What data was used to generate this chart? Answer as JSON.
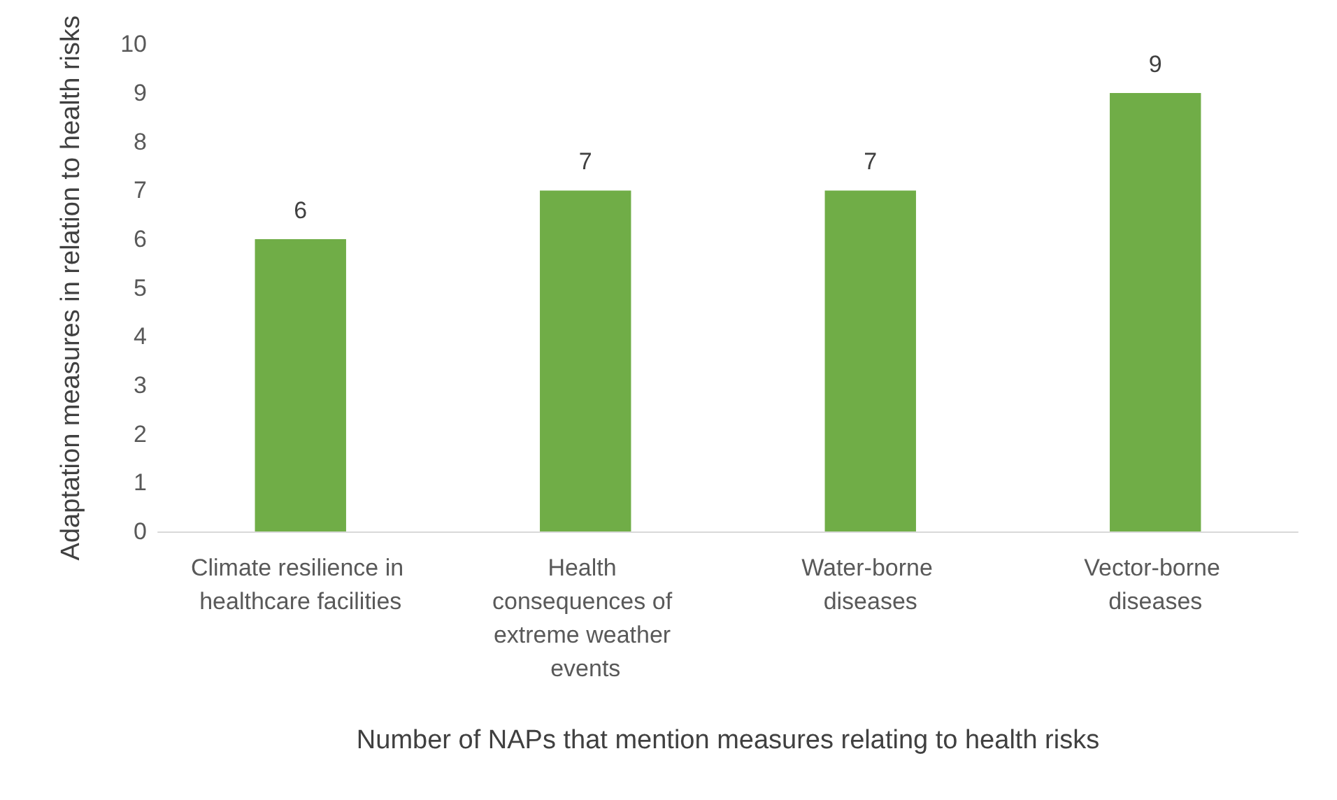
{
  "chart_data": {
    "type": "bar",
    "xlabel": "Number of NAPs that mention measures relating to health risks",
    "ylabel": "Adaptation measures in relation to health risks",
    "categories": [
      "Climate resilience in healthcare facilities",
      "Health consequences of extreme weather events",
      "Water-borne diseases",
      "Vector-borne diseases"
    ],
    "values": [
      6,
      7,
      7,
      9
    ],
    "color": "#70ad47",
    "ylim": [
      0,
      10
    ],
    "yticks": [
      0,
      1,
      2,
      3,
      4,
      5,
      6,
      7,
      8,
      9,
      10
    ],
    "grid": false,
    "data_labels": true
  }
}
